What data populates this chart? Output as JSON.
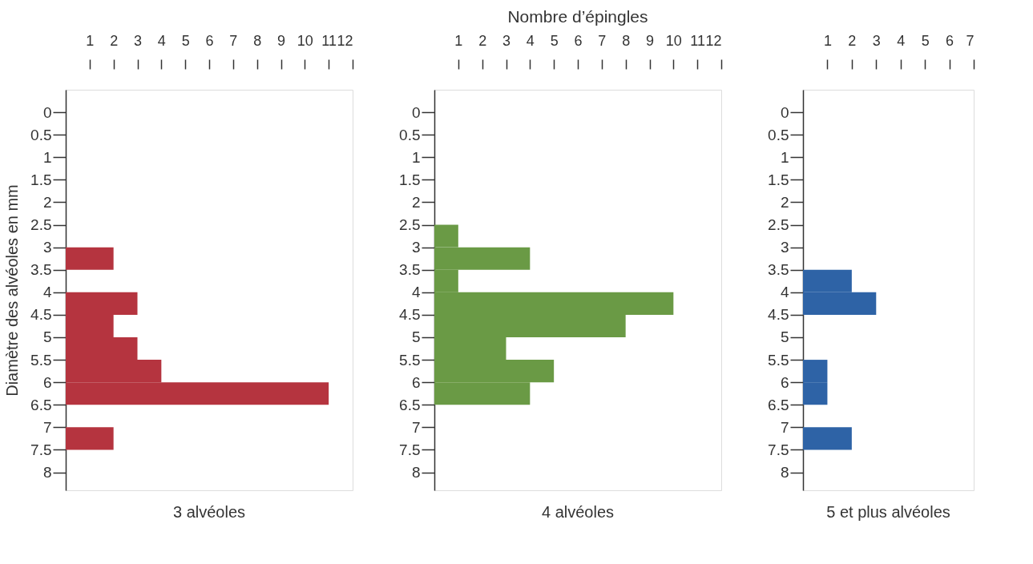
{
  "chart_data": [
    {
      "type": "histogram",
      "orientation": "horizontal",
      "xlabel": "3 alvéoles",
      "ylabel": "Diamètre des alvéoles en mm",
      "bins": [
        0,
        0.5,
        1,
        1.5,
        2,
        2.5,
        3,
        3.5,
        4,
        4.5,
        5,
        5.5,
        6,
        6.5,
        7,
        7.5,
        8
      ],
      "values": [
        0,
        0,
        0,
        0,
        0,
        0,
        2,
        0,
        3,
        2,
        3,
        4,
        11,
        0,
        2,
        0
      ],
      "color": "#b5343f",
      "xlim": [
        0,
        12
      ],
      "xticks": [
        1,
        2,
        3,
        4,
        5,
        6,
        7,
        8,
        9,
        10,
        11,
        12
      ],
      "ylim": [
        8.4,
        -0.5
      ],
      "yticks": [
        0,
        0.5,
        1,
        1.5,
        2,
        2.5,
        3,
        3.5,
        4,
        4.5,
        5,
        5.5,
        6,
        6.5,
        7,
        7.5,
        8
      ],
      "grid": false
    },
    {
      "type": "histogram",
      "orientation": "horizontal",
      "title": "Nombre d’épingles",
      "xlabel": "4 alvéoles",
      "bins": [
        0,
        0.5,
        1,
        1.5,
        2,
        2.5,
        3,
        3.5,
        4,
        4.5,
        5,
        5.5,
        6,
        6.5,
        7,
        7.5,
        8
      ],
      "values": [
        0,
        0,
        0,
        0,
        0,
        1,
        4,
        1,
        10,
        8,
        3,
        5,
        4,
        0,
        0,
        0
      ],
      "color": "#6a9a45",
      "xlim": [
        0,
        12
      ],
      "xticks": [
        1,
        2,
        3,
        4,
        5,
        6,
        7,
        8,
        9,
        10,
        11,
        12
      ],
      "ylim": [
        8.4,
        -0.5
      ],
      "yticks": [
        0,
        0.5,
        1,
        1.5,
        2,
        2.5,
        3,
        3.5,
        4,
        4.5,
        5,
        5.5,
        6,
        6.5,
        7,
        7.5,
        8
      ],
      "grid": false
    },
    {
      "type": "histogram",
      "orientation": "horizontal",
      "xlabel": "5 et plus alvéoles",
      "bins": [
        0,
        0.5,
        1,
        1.5,
        2,
        2.5,
        3,
        3.5,
        4,
        4.5,
        5,
        5.5,
        6,
        6.5,
        7,
        7.5,
        8
      ],
      "values": [
        0,
        0,
        0,
        0,
        0,
        0,
        0,
        2,
        3,
        0,
        0,
        1,
        1,
        0,
        2,
        0
      ],
      "color": "#2e63a6",
      "xlim": [
        0,
        7
      ],
      "xticks": [
        1,
        2,
        3,
        4,
        5,
        6,
        7
      ],
      "ylim": [
        8.4,
        -0.5
      ],
      "yticks": [
        0,
        0.5,
        1,
        1.5,
        2,
        2.5,
        3,
        3.5,
        4,
        4.5,
        5,
        5.5,
        6,
        6.5,
        7,
        7.5,
        8
      ],
      "grid": false
    }
  ]
}
